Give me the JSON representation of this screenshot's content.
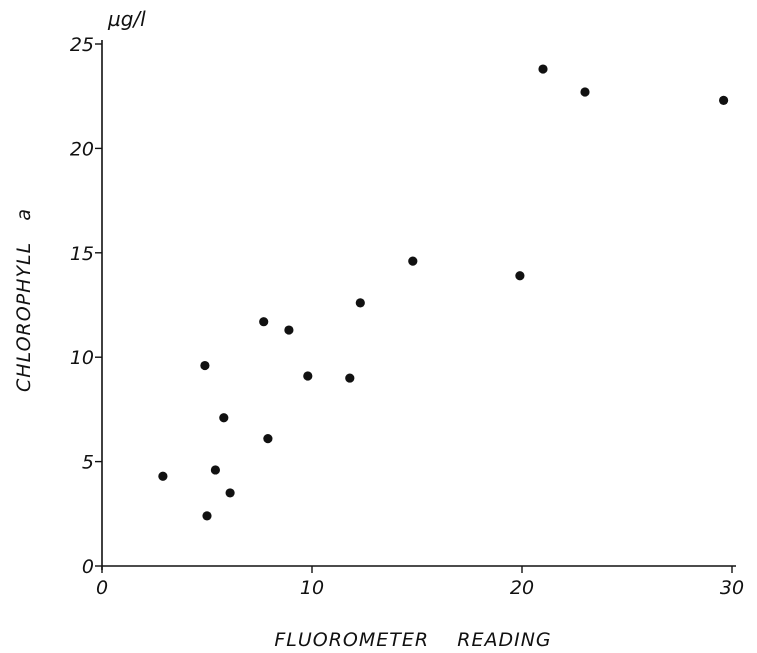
{
  "chart_data": {
    "type": "scatter",
    "xlabel": "FLUOROMETER    READING",
    "ylabel": "CHLOROPHYLL   a",
    "y_unit": "µg/l",
    "xlim": [
      0,
      30
    ],
    "ylim": [
      0,
      25
    ],
    "x_ticks": [
      0,
      10,
      20,
      30
    ],
    "y_ticks": [
      0,
      5,
      10,
      15,
      20,
      25
    ],
    "grid": false,
    "legend": "none",
    "color": "#111111",
    "series": [
      {
        "points": [
          {
            "x": 2.9,
            "y": 4.3
          },
          {
            "x": 4.9,
            "y": 9.6
          },
          {
            "x": 5.0,
            "y": 2.4
          },
          {
            "x": 5.4,
            "y": 4.6
          },
          {
            "x": 5.8,
            "y": 7.1
          },
          {
            "x": 6.1,
            "y": 3.5
          },
          {
            "x": 7.7,
            "y": 11.7
          },
          {
            "x": 7.9,
            "y": 6.1
          },
          {
            "x": 8.9,
            "y": 11.3
          },
          {
            "x": 9.8,
            "y": 9.1
          },
          {
            "x": 11.8,
            "y": 9.0
          },
          {
            "x": 12.3,
            "y": 12.6
          },
          {
            "x": 14.8,
            "y": 14.6
          },
          {
            "x": 19.9,
            "y": 13.9
          },
          {
            "x": 21.0,
            "y": 23.8
          },
          {
            "x": 23.0,
            "y": 22.7
          },
          {
            "x": 29.6,
            "y": 22.3
          }
        ]
      }
    ]
  }
}
